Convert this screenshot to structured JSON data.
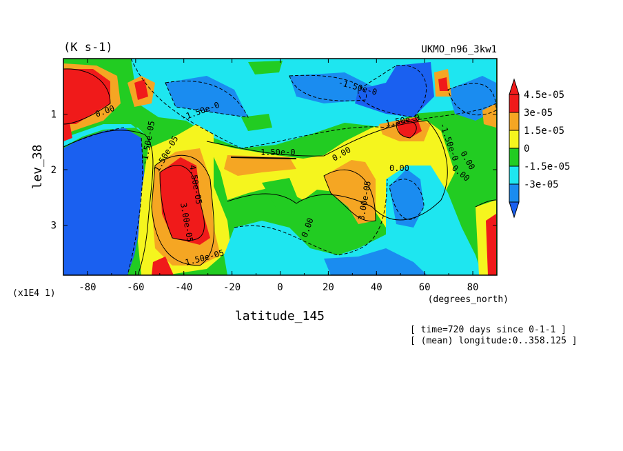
{
  "chart_data": {
    "type": "heatmap",
    "subtype": "filled-contour",
    "units_label": "(K s-1)",
    "dataset": "UKMO_n96_3kw1",
    "xlabel": "latitude_145",
    "x_unit_label": "(degrees_north)",
    "ylabel": "lev_38",
    "y_scale_note": "(x1E4 1)",
    "xlim": [
      -90,
      90
    ],
    "ylim": [
      3.9,
      0
    ],
    "x_ticks": [
      -80,
      -60,
      -40,
      -20,
      0,
      20,
      40,
      60,
      80
    ],
    "y_ticks": [
      1,
      2,
      3
    ],
    "levels": [
      {
        "label": "4.5e-05",
        "color": "#f01a1a"
      },
      {
        "label": "3e-05",
        "color": "#f5a623"
      },
      {
        "label": "1.5e-05",
        "color": "#f5f51e"
      },
      {
        "label": "0",
        "color": "#22cc22"
      },
      {
        "label": "-1.5e-05",
        "color": "#1ee6f0"
      },
      {
        "label": "-3e-05",
        "color": "#1a8cf0"
      }
    ],
    "colorbar_overflow_colors": {
      "high": "#f01a1a",
      "low": "#1a60f0"
    },
    "contour_labels": [
      "0.00",
      "1.50e-05",
      "3.00e-05",
      "4.50e-05",
      "-1.50e-05",
      "-1.50e-0",
      "1.50e-0",
      "-1.50e-0",
      "0.00",
      "1.50e-0",
      "0.00",
      "3.00e-05",
      "0.00",
      "-1.50e-0",
      "0.00",
      "0.00",
      "1.50e-05"
    ],
    "footer_lines": [
      "[ time=720 days since 0-1-1 ]",
      "[ (mean) longitude:0..358.125 ]"
    ],
    "grid": false,
    "legend_position": "right"
  }
}
